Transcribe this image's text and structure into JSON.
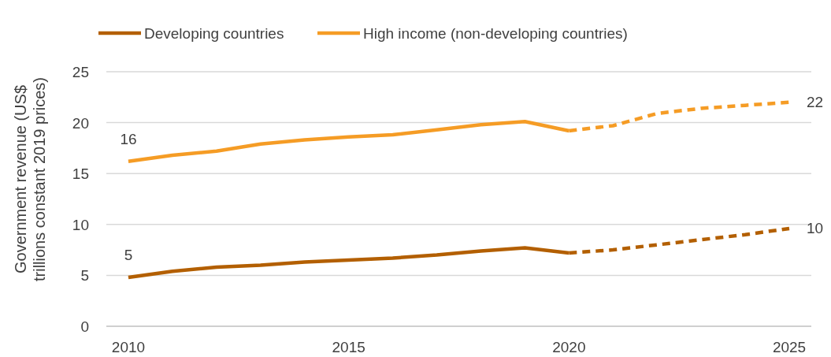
{
  "chart_data": {
    "type": "line",
    "ylabel": "Government revenue (US$ trillions constant 2019 prices)",
    "xlim": [
      2009.5,
      2025.5
    ],
    "xticks": [
      2010,
      2015,
      2020,
      2025
    ],
    "ylim": [
      0,
      25
    ],
    "yticks": [
      0,
      5,
      10,
      15,
      20,
      25
    ],
    "grid": "y",
    "legend": "top",
    "marker": "none",
    "series": [
      {
        "name": "Developing countries",
        "color": "#b35f00",
        "line_style": "solid",
        "x": [
          2010,
          2011,
          2012,
          2013,
          2014,
          2015,
          2016,
          2017,
          2018,
          2019,
          2020
        ],
        "values": [
          4.8,
          5.4,
          5.8,
          6.0,
          6.3,
          6.5,
          6.7,
          7.0,
          7.4,
          7.7,
          7.2
        ],
        "value_labels": [
          "5",
          null,
          null,
          null,
          null,
          null,
          null,
          null,
          null,
          null,
          null
        ]
      },
      {
        "name": "High income (non-developing countries)",
        "color": "#f59c25",
        "line_style": "solid",
        "x": [
          2010,
          2011,
          2012,
          2013,
          2014,
          2015,
          2016,
          2017,
          2018,
          2019,
          2020
        ],
        "values": [
          16.2,
          16.8,
          17.2,
          17.9,
          18.3,
          18.6,
          18.8,
          19.3,
          19.8,
          20.1,
          19.2
        ],
        "value_labels": [
          "16",
          null,
          null,
          null,
          null,
          null,
          null,
          null,
          null,
          null,
          null
        ]
      },
      {
        "color": "#b35f00",
        "line_style": "dashed",
        "x": [
          2020,
          2021,
          2022,
          2023,
          2024,
          2025
        ],
        "values": [
          7.2,
          7.5,
          8.0,
          8.5,
          9.0,
          9.6
        ],
        "value_labels": [
          null,
          null,
          null,
          null,
          null,
          "10"
        ]
      },
      {
        "color": "#f59c25",
        "line_style": "dashed",
        "x": [
          2020,
          2021,
          2022,
          2023,
          2024,
          2025
        ],
        "values": [
          19.2,
          19.7,
          20.9,
          21.4,
          21.7,
          22.0
        ],
        "value_labels": [
          null,
          null,
          null,
          null,
          null,
          "22"
        ]
      }
    ]
  }
}
